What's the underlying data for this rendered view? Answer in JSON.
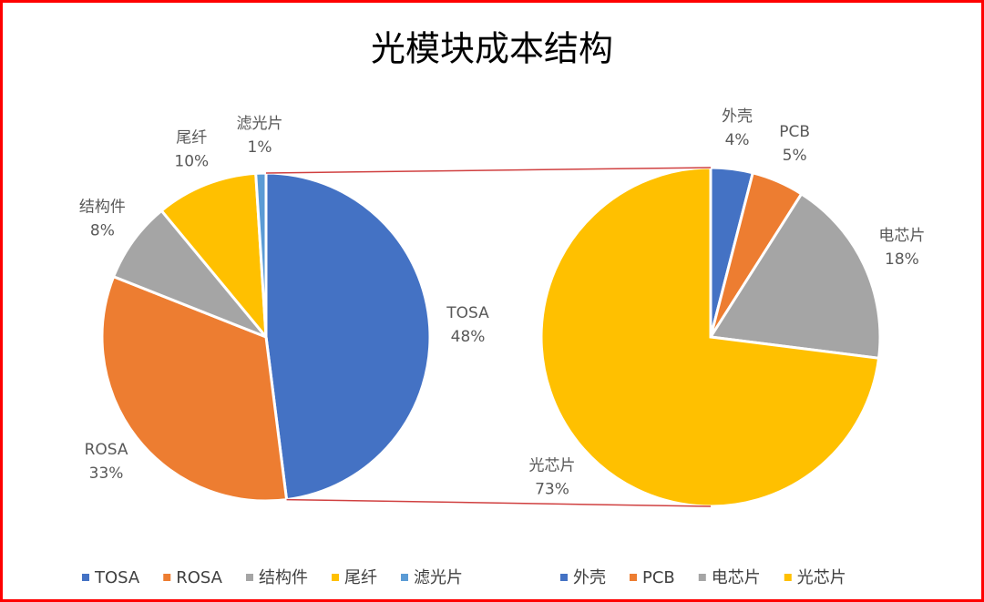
{
  "chart_data": [
    {
      "type": "pie",
      "title": "光模块成本结构",
      "categories": [
        "TOSA",
        "ROSA",
        "结构件",
        "尾纤",
        "滤光片"
      ],
      "values": [
        48,
        33,
        8,
        10,
        1
      ],
      "value_labels": [
        "48%",
        "33%",
        "8%",
        "10%",
        "1%"
      ],
      "colors": [
        "#4472c4",
        "#ed7d31",
        "#a5a5a5",
        "#ffc000",
        "#5b9bd5"
      ]
    },
    {
      "type": "pie",
      "categories": [
        "外壳",
        "PCB",
        "电芯片",
        "光芯片"
      ],
      "values": [
        4,
        5,
        18,
        73
      ],
      "value_labels": [
        "4%",
        "5%",
        "18%",
        "73%"
      ],
      "colors": [
        "#4472c4",
        "#ed7d31",
        "#a5a5a5",
        "#ffc000"
      ]
    }
  ]
}
